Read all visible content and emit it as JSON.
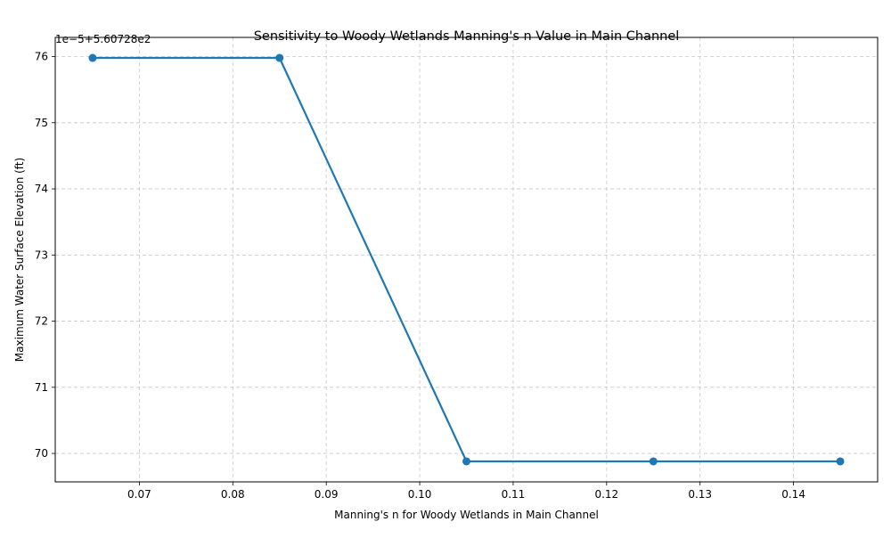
{
  "chart_data": {
    "type": "line",
    "title": "Sensitivity to Woody Wetlands Manning's n Value in Main Channel",
    "xlabel": "Manning's n for Woody Wetlands in Main Channel",
    "ylabel": "Maximum Water Surface Elevation (ft)",
    "y_offset_text": "1e−5+5.60728e2",
    "x": [
      0.065,
      0.085,
      0.105,
      0.125,
      0.145
    ],
    "y_display": [
      75.98,
      75.98,
      69.88,
      69.88,
      69.88
    ],
    "xlim": [
      0.061,
      0.149
    ],
    "ylim_display": [
      69.57,
      76.29
    ],
    "x_ticks": [
      "0.07",
      "0.08",
      "0.09",
      "0.10",
      "0.11",
      "0.12",
      "0.13",
      "0.14"
    ],
    "x_tick_values": [
      0.07,
      0.08,
      0.09,
      0.1,
      0.11,
      0.12,
      0.13,
      0.14
    ],
    "y_ticks": [
      "70",
      "71",
      "72",
      "73",
      "74",
      "75",
      "76"
    ],
    "y_tick_values": [
      70,
      71,
      72,
      73,
      74,
      75,
      76
    ],
    "grid": true,
    "color": "#1f77b4",
    "marker": "circle"
  }
}
